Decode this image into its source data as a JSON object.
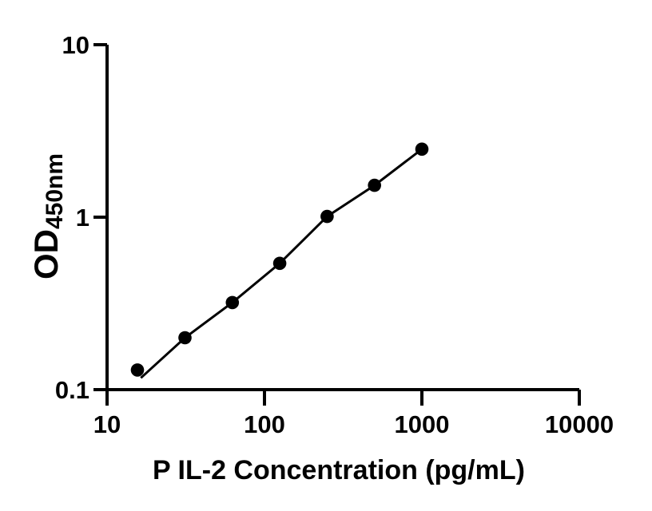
{
  "figure": {
    "background_color": "#ffffff",
    "foreground_color": "#000000"
  },
  "chart_data": {
    "type": "scatter",
    "title": "",
    "xlabel": "P IL-2 Concentration (pg/mL)",
    "ylabel": "OD",
    "ylabel_subscript": "450nm",
    "x_scale": "log",
    "y_scale": "log",
    "xlim": [
      10,
      10000
    ],
    "ylim": [
      0.1,
      10
    ],
    "x_ticks": [
      10,
      100,
      1000,
      10000
    ],
    "x_tick_labels": [
      "10",
      "100",
      "1000",
      "10000"
    ],
    "y_ticks": [
      0.1,
      1,
      10
    ],
    "y_tick_labels": [
      "0.1",
      "1",
      "10"
    ],
    "grid": false,
    "legend": null,
    "marker_color": "#000000",
    "line_color": "#000000",
    "points": [
      {
        "x": 15.6,
        "y": 0.13
      },
      {
        "x": 31.25,
        "y": 0.2
      },
      {
        "x": 62.5,
        "y": 0.32
      },
      {
        "x": 125,
        "y": 0.54
      },
      {
        "x": 250,
        "y": 1.01
      },
      {
        "x": 500,
        "y": 1.53
      },
      {
        "x": 1000,
        "y": 2.48
      }
    ],
    "fit_curve": [
      {
        "x": 16.4,
        "y": 0.117
      },
      {
        "x": 31.25,
        "y": 0.2
      },
      {
        "x": 62.5,
        "y": 0.32
      },
      {
        "x": 125,
        "y": 0.54
      },
      {
        "x": 250,
        "y": 1.01
      },
      {
        "x": 500,
        "y": 1.53
      },
      {
        "x": 1000,
        "y": 2.48
      }
    ]
  }
}
